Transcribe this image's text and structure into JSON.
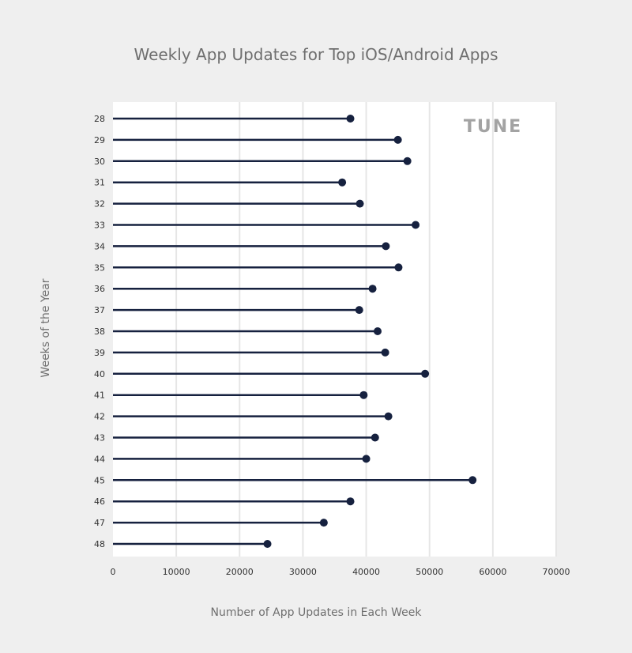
{
  "chart_data": {
    "type": "lollipop",
    "title": "Weekly App Updates for Top iOS/Android Apps",
    "xlabel": "Number of App Updates in Each Week",
    "ylabel": "Weeks of the Year",
    "xlim": [
      0,
      70000
    ],
    "xticks": [
      "0",
      "10000",
      "20000",
      "30000",
      "40000",
      "50000",
      "60000",
      "70000"
    ],
    "grid": true,
    "watermark": "TUNE",
    "colors": {
      "mark": "#16213f",
      "grid": "#e6e6e6",
      "plot_bg": "#ffffff",
      "page_bg": "#efefef"
    },
    "categories": [
      "28",
      "29",
      "30",
      "31",
      "32",
      "33",
      "34",
      "35",
      "36",
      "37",
      "38",
      "39",
      "40",
      "41",
      "42",
      "43",
      "44",
      "45",
      "46",
      "47",
      "48"
    ],
    "values": [
      37500,
      45000,
      46500,
      36200,
      39000,
      47800,
      43100,
      45100,
      41000,
      38900,
      41800,
      43000,
      49300,
      39600,
      43500,
      41400,
      40000,
      56800,
      37500,
      33300,
      24400
    ]
  }
}
